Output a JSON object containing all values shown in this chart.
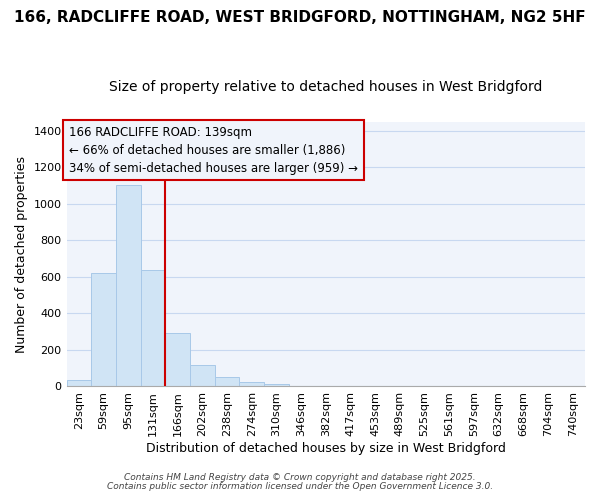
{
  "title1": "166, RADCLIFFE ROAD, WEST BRIDGFORD, NOTTINGHAM, NG2 5HF",
  "title2": "Size of property relative to detached houses in West Bridgford",
  "xlabel": "Distribution of detached houses by size in West Bridgford",
  "ylabel": "Number of detached properties",
  "categories": [
    "23sqm",
    "59sqm",
    "95sqm",
    "131sqm",
    "166sqm",
    "202sqm",
    "238sqm",
    "274sqm",
    "310sqm",
    "346sqm",
    "382sqm",
    "417sqm",
    "453sqm",
    "489sqm",
    "525sqm",
    "561sqm",
    "597sqm",
    "632sqm",
    "668sqm",
    "704sqm",
    "740sqm"
  ],
  "values": [
    35,
    620,
    1100,
    640,
    295,
    115,
    50,
    22,
    15,
    0,
    0,
    0,
    0,
    0,
    0,
    0,
    0,
    0,
    0,
    0,
    0
  ],
  "bar_color": "#d0e4f5",
  "bar_edge_color": "#a8c8e8",
  "vline_x_index": 3,
  "vline_color": "#cc0000",
  "annotation_line1": "166 RADCLIFFE ROAD: 139sqm",
  "annotation_line2": "← 66% of detached houses are smaller (1,886)",
  "annotation_line3": "34% of semi-detached houses are larger (959) →",
  "box_edge_color": "#cc0000",
  "ylim": [
    0,
    1450
  ],
  "yticks": [
    0,
    200,
    400,
    600,
    800,
    1000,
    1200,
    1400
  ],
  "bg_color": "#ffffff",
  "plot_bg_color": "#f0f4fb",
  "grid_color": "#c8d8f0",
  "footer1": "Contains HM Land Registry data © Crown copyright and database right 2025.",
  "footer2": "Contains public sector information licensed under the Open Government Licence 3.0.",
  "title1_fontsize": 11,
  "title2_fontsize": 10,
  "xlabel_fontsize": 9,
  "ylabel_fontsize": 9,
  "tick_fontsize": 8,
  "annot_fontsize": 8.5
}
